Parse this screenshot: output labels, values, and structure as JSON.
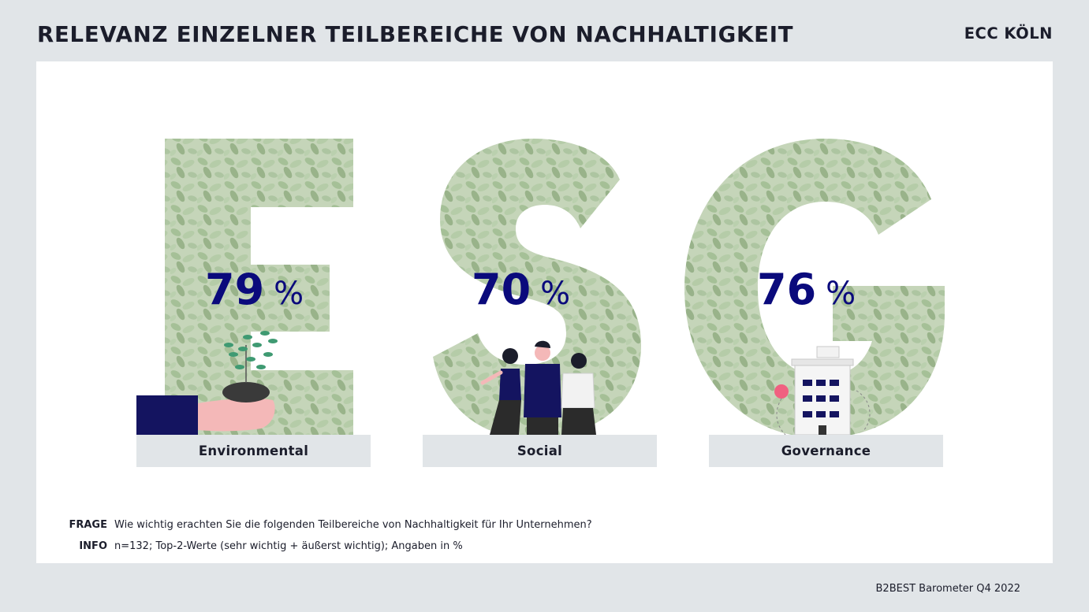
{
  "header": {
    "title": "RELEVANZ EINZELNER TEILBEREICHE VON NACHHALTIGKEIT",
    "brand": "ECC KÖLN"
  },
  "chart_data": {
    "type": "bar",
    "categories": [
      "Environmental",
      "Social",
      "Governance"
    ],
    "values": [
      79,
      70,
      76
    ],
    "letters": [
      "E",
      "S",
      "G"
    ],
    "unit": "%"
  },
  "notes": {
    "question_label": "FRAGE",
    "question_text": "Wie wichtig erachten Sie die folgenden Teilbereiche von Nachhaltigkeit für Ihr Unternehmen?",
    "info_label": "INFO",
    "info_text": "n=132; Top-2-Werte (sehr wichtig + äußerst wichtig); Angaben in %"
  },
  "footer": {
    "source": "B2BEST Barometer Q4 2022"
  },
  "colors": {
    "value_color": "#0a0a7c",
    "leaf_green": "#8fb07d",
    "label_box": "#e1e5e8"
  },
  "icons": [
    "hand-with-plant-icon",
    "people-group-icon",
    "office-building-icon"
  ]
}
